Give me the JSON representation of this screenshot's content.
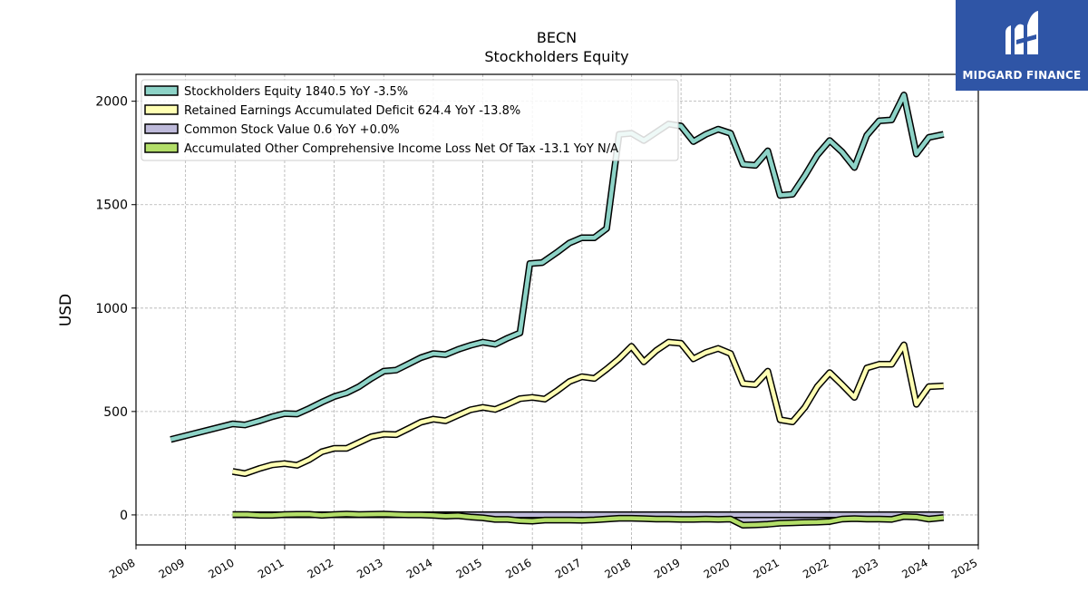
{
  "logo": {
    "text": "MIDGARD FINANCE",
    "color": "#2f55a6"
  },
  "chart_data": {
    "type": "line",
    "title": "BECN",
    "subtitle": "Stockholders  Equity",
    "ylabel": "USD",
    "xlabel": "",
    "xlim": [
      2008.0,
      2025.0
    ],
    "ylim": [
      -145,
      2130
    ],
    "xticks": [
      2008,
      2009,
      2010,
      2011,
      2012,
      2013,
      2014,
      2015,
      2016,
      2017,
      2018,
      2019,
      2020,
      2021,
      2022,
      2023,
      2024,
      2025
    ],
    "yticks": [
      0,
      500,
      1000,
      1500,
      2000
    ],
    "grid": true,
    "legend_position": "top-left",
    "series": [
      {
        "name": "Stockholders Equity  1840.5 YoY -3.5%",
        "color": "#8dd3c7",
        "x": [
          2008.7,
          2009.95,
          2010.2,
          2010.5,
          2010.75,
          2011.0,
          2011.25,
          2011.5,
          2011.75,
          2012.0,
          2012.25,
          2012.5,
          2012.75,
          2013.0,
          2013.25,
          2013.5,
          2013.75,
          2014.0,
          2014.25,
          2014.5,
          2014.75,
          2015.0,
          2015.25,
          2015.5,
          2015.75,
          2015.95,
          2016.2,
          2016.5,
          2016.75,
          2017.0,
          2017.25,
          2017.5,
          2017.75,
          2018.0,
          2018.25,
          2018.5,
          2018.75,
          2019.0,
          2019.25,
          2019.5,
          2019.75,
          2020.0,
          2020.25,
          2020.5,
          2020.75,
          2021.0,
          2021.25,
          2021.5,
          2021.75,
          2022.0,
          2022.25,
          2022.5,
          2022.75,
          2023.0,
          2023.25,
          2023.5,
          2023.75,
          2024.0,
          2024.3
        ],
        "y": [
          365,
          440,
          435,
          455,
          475,
          490,
          488,
          515,
          545,
          572,
          590,
          620,
          660,
          695,
          700,
          730,
          760,
          780,
          775,
          800,
          820,
          835,
          825,
          855,
          880,
          1215,
          1220,
          1270,
          1315,
          1340,
          1340,
          1385,
          1840,
          1845,
          1810,
          1850,
          1890,
          1880,
          1805,
          1840,
          1865,
          1845,
          1695,
          1690,
          1760,
          1545,
          1550,
          1640,
          1740,
          1810,
          1755,
          1680,
          1835,
          1905,
          1910,
          2030,
          1745,
          1825,
          1840
        ]
      },
      {
        "name": "Retained Earnings Accumulated Deficit  624.4 YoY -13.8%",
        "color": "#ffffb3",
        "x": [
          2009.95,
          2010.2,
          2010.5,
          2010.75,
          2011.0,
          2011.25,
          2011.5,
          2011.75,
          2012.0,
          2012.25,
          2012.5,
          2012.75,
          2013.0,
          2013.25,
          2013.5,
          2013.75,
          2014.0,
          2014.25,
          2014.5,
          2014.75,
          2015.0,
          2015.25,
          2015.5,
          2015.75,
          2016.0,
          2016.25,
          2016.5,
          2016.75,
          2017.0,
          2017.25,
          2017.5,
          2017.75,
          2018.0,
          2018.25,
          2018.5,
          2018.75,
          2019.0,
          2019.25,
          2019.5,
          2019.75,
          2020.0,
          2020.25,
          2020.5,
          2020.75,
          2021.0,
          2021.25,
          2021.5,
          2021.75,
          2022.0,
          2022.25,
          2022.5,
          2022.75,
          2023.0,
          2023.25,
          2023.5,
          2023.75,
          2024.0,
          2024.3
        ],
        "y": [
          210,
          200,
          225,
          242,
          248,
          240,
          268,
          305,
          322,
          322,
          350,
          378,
          390,
          388,
          418,
          448,
          463,
          455,
          482,
          508,
          520,
          510,
          535,
          562,
          568,
          560,
          600,
          645,
          668,
          660,
          705,
          755,
          815,
          740,
          795,
          835,
          830,
          755,
          785,
          805,
          780,
          635,
          630,
          695,
          460,
          450,
          520,
          620,
          688,
          630,
          568,
          710,
          728,
          728,
          822,
          535,
          620,
          624
        ]
      },
      {
        "name": "Common Stock Value  0.6 YoY +0.0%",
        "color": "#bebada",
        "x": [
          2009.95,
          2024.3
        ],
        "y": [
          0.6,
          0.6
        ]
      },
      {
        "name": "Accumulated Other Comprehensive Income Loss Net Of Tax  -13.1 YoY N/A",
        "color": "#b3de69",
        "x": [
          2009.95,
          2010.25,
          2010.5,
          2010.75,
          2011.0,
          2011.25,
          2011.5,
          2011.75,
          2012.0,
          2012.25,
          2012.5,
          2012.75,
          2013.0,
          2013.25,
          2013.5,
          2013.75,
          2014.0,
          2014.25,
          2014.5,
          2014.75,
          2015.0,
          2015.25,
          2015.5,
          2015.75,
          2016.0,
          2016.25,
          2016.5,
          2016.75,
          2017.0,
          2017.25,
          2017.5,
          2017.75,
          2018.0,
          2018.25,
          2018.5,
          2018.75,
          2019.0,
          2019.25,
          2019.5,
          2019.75,
          2020.0,
          2020.25,
          2020.5,
          2020.75,
          2021.0,
          2021.25,
          2021.5,
          2021.75,
          2022.0,
          2022.25,
          2022.5,
          2022.75,
          2023.0,
          2023.25,
          2023.5,
          2023.75,
          2024.0,
          2024.3
        ],
        "y": [
          2,
          2,
          -2,
          -2,
          2,
          3,
          3,
          -2,
          2,
          4,
          2,
          3,
          4,
          2,
          0,
          0,
          -2,
          -6,
          -4,
          -10,
          -14,
          -22,
          -22,
          -28,
          -30,
          -25,
          -25,
          -25,
          -26,
          -24,
          -20,
          -16,
          -16,
          -18,
          -20,
          -20,
          -22,
          -22,
          -20,
          -22,
          -20,
          -50,
          -48,
          -45,
          -40,
          -38,
          -36,
          -35,
          -32,
          -20,
          -18,
          -20,
          -20,
          -22,
          -8,
          -10,
          -20,
          -13
        ]
      }
    ]
  }
}
